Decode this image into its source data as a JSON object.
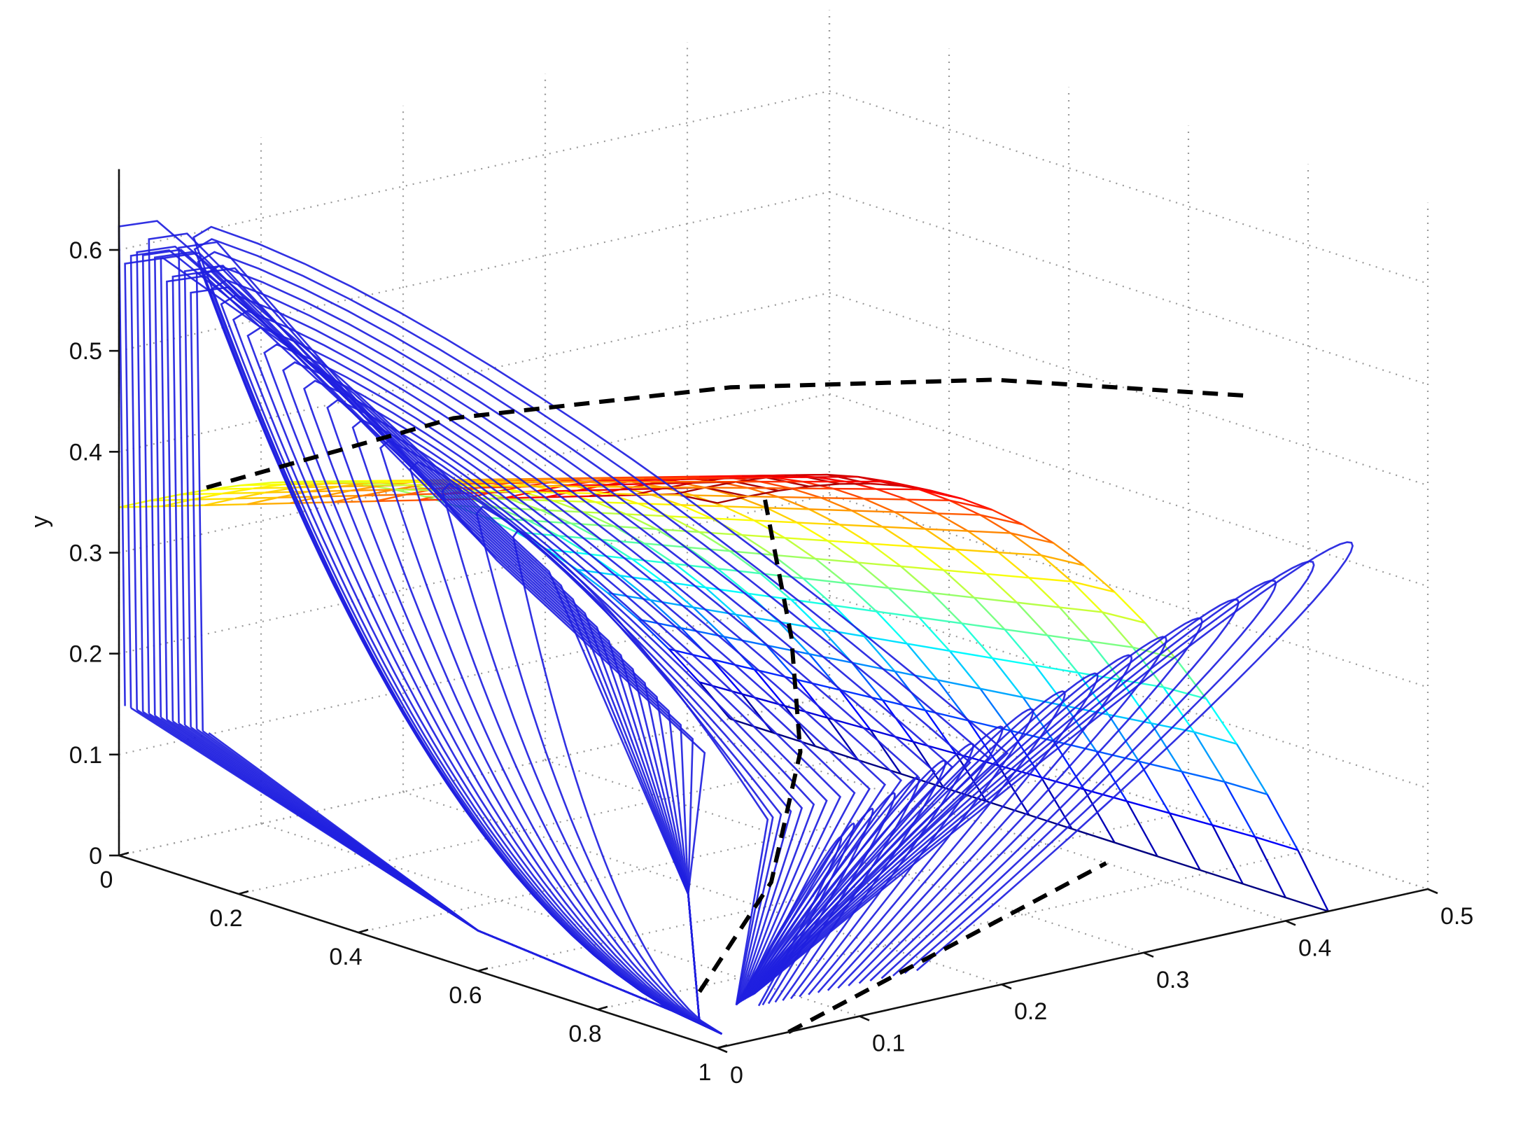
{
  "chart_data": {
    "type": "surface3d",
    "title": "",
    "xlabel": "",
    "ylabel": "y",
    "zlabel": "",
    "grid": true,
    "axes": {
      "x": {
        "range": [
          0,
          1
        ],
        "ticks": [
          0,
          0.2,
          0.4,
          0.6,
          0.8,
          1
        ],
        "tick_labels": [
          "0",
          "0.2",
          "0.4",
          "0.6",
          "0.8",
          "1"
        ]
      },
      "z": {
        "range": [
          0,
          0.5
        ],
        "ticks": [
          0,
          0.1,
          0.2,
          0.3,
          0.4,
          0.5
        ],
        "tick_labels": [
          "0",
          "0.1",
          "0.2",
          "0.3",
          "0.4",
          "0.5"
        ]
      },
      "y": {
        "range": [
          0,
          0.65
        ],
        "ticks": [
          0,
          0.1,
          0.2,
          0.3,
          0.4,
          0.5,
          0.6
        ],
        "tick_labels": [
          "0",
          "0.1",
          "0.2",
          "0.3",
          "0.4",
          "0.5",
          "0.6"
        ]
      }
    },
    "surface": {
      "name": "",
      "colormap": "jet",
      "x_range": [
        0,
        1
      ],
      "z_range": [
        0,
        0.43
      ],
      "peak_y": 0.54,
      "edge_y_at_x0": 0.345
    },
    "dashed_curves": [
      {
        "name": "",
        "color": "#000000",
        "points": [
          [
            1,
            0.37,
            0.53
          ],
          [
            0.75,
            0.3,
            0.52
          ],
          [
            0.5,
            0.22,
            0.49
          ],
          [
            0.25,
            0.13,
            0.44
          ],
          [
            0,
            0.06,
            0.345
          ]
        ]
      },
      {
        "name": "",
        "color": "#000000",
        "points": [
          [
            0.97,
            0.0,
            0.05
          ],
          [
            0.9,
            0.08,
            0.12
          ],
          [
            0.83,
            0.13,
            0.22
          ],
          [
            0.72,
            0.17,
            0.3
          ],
          [
            0.62,
            0.2,
            0.36
          ],
          [
            0.58,
            0.21,
            0.4
          ]
        ]
      },
      {
        "name": "",
        "color": "#000000",
        "points": [
          [
            1,
            0.05,
            0.0
          ],
          [
            0.7,
            0.4,
            0.0
          ]
        ]
      }
    ],
    "trajectories": {
      "name": "",
      "color": "#1f1fe0",
      "count": 18
    }
  },
  "colors": {
    "trajectory": "#1f1fe0",
    "dashed": "#000000",
    "grid": "#9a9a9a",
    "axis": "#111111"
  }
}
